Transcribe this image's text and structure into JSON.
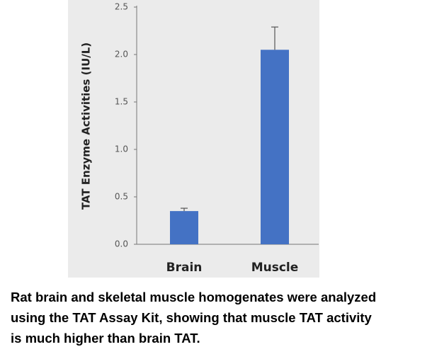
{
  "chart_data": {
    "type": "bar",
    "y_label": "TAT Enzyme Activities (IU/L)",
    "categories": [
      "Brain",
      "Muscle"
    ],
    "values": [
      0.35,
      2.05
    ],
    "errors": [
      0.03,
      0.24
    ],
    "color": "#4472c4",
    "ylim": [
      0,
      2.5
    ],
    "yticks": [
      {
        "value": 0,
        "label": "0.0"
      },
      0.5,
      {
        "value": 1,
        "label": "1.0"
      },
      1.5,
      {
        "value": 2,
        "label": "2.0"
      },
      2.5
    ],
    "caption": [
      "Rat brain and skeletal muscle homogenates were analyzed",
      "using the TAT Assay Kit, showing that muscle TAT activity",
      "is much higher than brain TAT."
    ]
  }
}
